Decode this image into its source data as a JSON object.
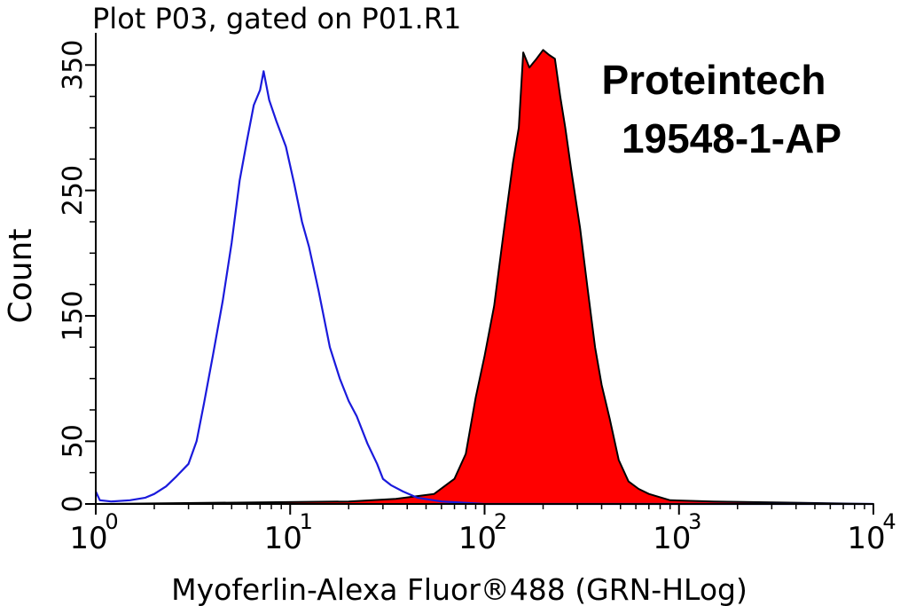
{
  "chart_data": {
    "type": "area",
    "title": "Plot P03, gated on P01.R1",
    "xlabel": "Myoferlin-Alexa Fluor®488 (GRN-HLog)",
    "ylabel": "Count",
    "x_scale": "log",
    "xlim": [
      1,
      10000
    ],
    "ylim": [
      0,
      370
    ],
    "x_ticks": [
      {
        "base": "10",
        "exp": "0",
        "value": 1
      },
      {
        "base": "10",
        "exp": "1",
        "value": 10
      },
      {
        "base": "10",
        "exp": "2",
        "value": 100
      },
      {
        "base": "10",
        "exp": "3",
        "value": 1000
      },
      {
        "base": "10",
        "exp": "4",
        "value": 10000
      }
    ],
    "y_ticks": [
      {
        "label": "0",
        "value": 0
      },
      {
        "label": "50",
        "value": 50
      },
      {
        "label": "150",
        "value": 150
      },
      {
        "label": "250",
        "value": 250
      },
      {
        "label": "350",
        "value": 350
      }
    ],
    "grid": false,
    "annotations": [
      "Proteintech",
      "19548-1-AP"
    ],
    "series": [
      {
        "style": "outline",
        "color": "#1a1adc",
        "points": [
          [
            1.0,
            10
          ],
          [
            1.05,
            3
          ],
          [
            1.2,
            2
          ],
          [
            1.5,
            3
          ],
          [
            1.8,
            5
          ],
          [
            2.0,
            8
          ],
          [
            2.3,
            14
          ],
          [
            2.6,
            22
          ],
          [
            3.0,
            32
          ],
          [
            3.3,
            50
          ],
          [
            3.6,
            80
          ],
          [
            4.0,
            118
          ],
          [
            4.5,
            162
          ],
          [
            5.0,
            208
          ],
          [
            5.5,
            258
          ],
          [
            6.0,
            290
          ],
          [
            6.5,
            318
          ],
          [
            7.0,
            330
          ],
          [
            7.3,
            345
          ],
          [
            7.8,
            322
          ],
          [
            8.5,
            305
          ],
          [
            9.5,
            285
          ],
          [
            10.5,
            255
          ],
          [
            11.5,
            225
          ],
          [
            12.5,
            205
          ],
          [
            14.0,
            170
          ],
          [
            16.0,
            125
          ],
          [
            18.0,
            100
          ],
          [
            20.0,
            82
          ],
          [
            22.0,
            70
          ],
          [
            25.0,
            48
          ],
          [
            28.0,
            32
          ],
          [
            30.0,
            20
          ],
          [
            33.0,
            15
          ],
          [
            38.0,
            10
          ],
          [
            45.0,
            5
          ],
          [
            60.0,
            2
          ],
          [
            100.0,
            0
          ],
          [
            10000.0,
            0
          ]
        ]
      },
      {
        "style": "filled",
        "color": "#ff0000",
        "points": [
          [
            1.0,
            0
          ],
          [
            20.0,
            2
          ],
          [
            35.0,
            4
          ],
          [
            55.0,
            8
          ],
          [
            70.0,
            20
          ],
          [
            80.0,
            40
          ],
          [
            90.0,
            85
          ],
          [
            100.0,
            118
          ],
          [
            112.0,
            158
          ],
          [
            125.0,
            215
          ],
          [
            140.0,
            272
          ],
          [
            150.0,
            300
          ],
          [
            158.0,
            360
          ],
          [
            170.0,
            348
          ],
          [
            185.0,
            355
          ],
          [
            200.0,
            362
          ],
          [
            215.0,
            358
          ],
          [
            230.0,
            355
          ],
          [
            245.0,
            325
          ],
          [
            260.0,
            300
          ],
          [
            280.0,
            265
          ],
          [
            310.0,
            220
          ],
          [
            340.0,
            170
          ],
          [
            370.0,
            125
          ],
          [
            400.0,
            95
          ],
          [
            440.0,
            68
          ],
          [
            490.0,
            35
          ],
          [
            550.0,
            18
          ],
          [
            620.0,
            12
          ],
          [
            700.0,
            8
          ],
          [
            900.0,
            3
          ],
          [
            1500.0,
            2
          ],
          [
            4000.0,
            1
          ],
          [
            10000.0,
            0
          ]
        ]
      }
    ]
  }
}
